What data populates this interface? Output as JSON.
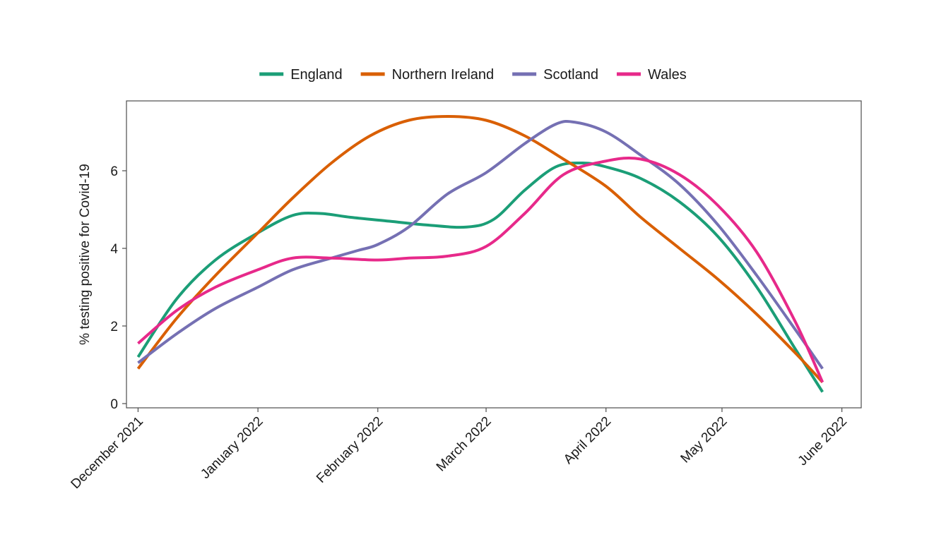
{
  "chart_data": {
    "type": "line",
    "title": "",
    "xlabel": "",
    "ylabel": "% testing positive for Covid-19",
    "ylim": [
      0,
      7.8
    ],
    "grid": false,
    "legend_position": "top",
    "x_ticks": [
      "December 2021",
      "January 2022",
      "February 2022",
      "March 2022",
      "April 2022",
      "May 2022",
      "June 2022"
    ],
    "y_ticks": [
      0,
      2,
      4,
      6
    ],
    "x_domain_days": [
      -3,
      187
    ],
    "x_tick_days": [
      0,
      31,
      62,
      90,
      121,
      151,
      182
    ],
    "series": [
      {
        "name": "England",
        "color": "#1b9e77",
        "x_days": [
          0,
          10,
          20,
          31,
          40,
          47,
          55,
          65,
          75,
          85,
          92,
          100,
          108,
          115,
          121,
          130,
          140,
          150,
          160,
          170,
          177
        ],
        "values": [
          1.2,
          2.7,
          3.7,
          4.4,
          4.85,
          4.9,
          4.8,
          4.7,
          4.6,
          4.55,
          4.75,
          5.5,
          6.1,
          6.2,
          6.1,
          5.8,
          5.2,
          4.3,
          3.0,
          1.4,
          0.3
        ]
      },
      {
        "name": "Northern Ireland",
        "color": "#d95f02",
        "x_days": [
          0,
          10,
          20,
          31,
          40,
          50,
          60,
          70,
          80,
          90,
          100,
          110,
          121,
          130,
          140,
          150,
          160,
          170,
          177
        ],
        "values": [
          0.9,
          2.2,
          3.3,
          4.4,
          5.3,
          6.2,
          6.9,
          7.3,
          7.4,
          7.3,
          6.9,
          6.3,
          5.6,
          4.8,
          4.0,
          3.2,
          2.3,
          1.3,
          0.55
        ]
      },
      {
        "name": "Scotland",
        "color": "#7570b3",
        "x_days": [
          0,
          10,
          20,
          31,
          40,
          50,
          57,
          62,
          70,
          80,
          90,
          100,
          108,
          113,
          121,
          130,
          140,
          150,
          160,
          170,
          177
        ],
        "values": [
          1.05,
          1.8,
          2.45,
          3.0,
          3.45,
          3.75,
          3.95,
          4.1,
          4.55,
          5.4,
          5.95,
          6.7,
          7.2,
          7.25,
          7.0,
          6.4,
          5.65,
          4.6,
          3.3,
          1.9,
          0.9
        ]
      },
      {
        "name": "Wales",
        "color": "#e7298a",
        "x_days": [
          0,
          10,
          20,
          31,
          40,
          50,
          62,
          70,
          80,
          90,
          100,
          110,
          121,
          130,
          140,
          150,
          160,
          170,
          177
        ],
        "values": [
          1.55,
          2.4,
          3.0,
          3.45,
          3.75,
          3.75,
          3.7,
          3.75,
          3.8,
          4.05,
          4.9,
          5.9,
          6.25,
          6.3,
          5.9,
          5.1,
          3.9,
          2.1,
          0.55
        ]
      }
    ]
  },
  "axis_color": "#4d4d4d"
}
